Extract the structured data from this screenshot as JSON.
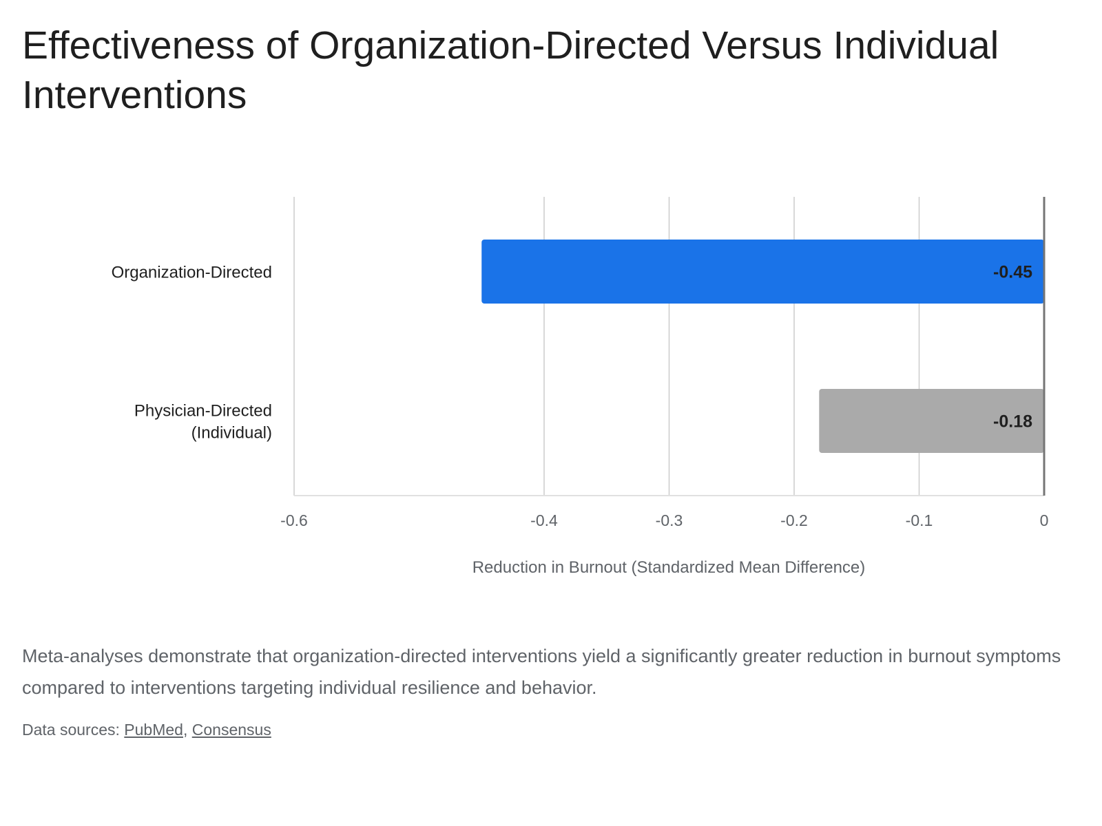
{
  "title": "Effectiveness of Organization-Directed Versus Individual Interventions",
  "caption": "Meta-analyses demonstrate that organization-directed interventions yield a significantly greater reduction in burnout symptoms compared to interventions targeting individual resilience and behavior.",
  "sources": {
    "prefix": "Data sources: ",
    "separator": ", ",
    "links": [
      "PubMed",
      "Consensus"
    ]
  },
  "colors": {
    "organization": "#1a73e8",
    "physician": "#aaaaaa",
    "grid": "#cccccc",
    "zero_line": "#757575",
    "text": "#1f1f1f",
    "muted": "#5f6368"
  },
  "chart_data": {
    "type": "bar",
    "orientation": "horizontal",
    "categories": [
      "Organization-Directed",
      "Physician-Directed (Individual)"
    ],
    "category_lines": [
      [
        "Organization-Directed"
      ],
      [
        "Physician-Directed",
        "(Individual)"
      ]
    ],
    "values": [
      -0.45,
      -0.18
    ],
    "value_labels": [
      "-0.45",
      "-0.18"
    ],
    "xlabel": "Reduction in Burnout (Standardized Mean Difference)",
    "xlim": [
      -0.55,
      0
    ],
    "ticks": [
      -0.6,
      -0.4,
      -0.3,
      -0.2,
      -0.1,
      0
    ],
    "tick_labels": [
      "-0.6",
      "-0.4",
      "-0.3",
      "-0.2",
      "-0.1",
      "0"
    ],
    "grid": true,
    "legend": "none"
  }
}
